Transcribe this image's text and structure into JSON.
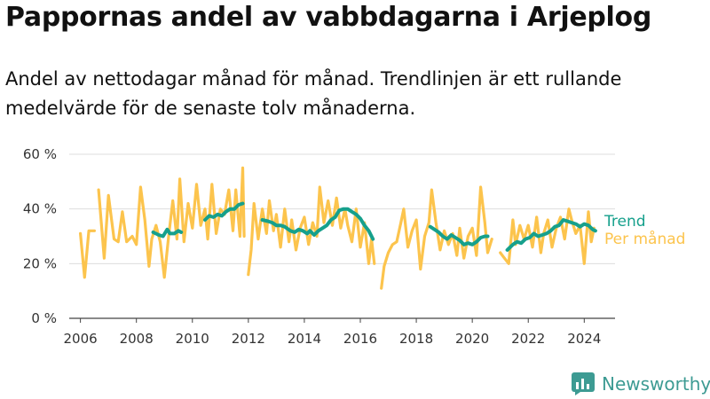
{
  "header": {
    "title": "Pappornas andel av vabbdagarna i Arjeplog",
    "subtitle": "Andel av nettodagar månad för månad. Trendlinjen är ett rullande medelvärde för de senaste tolv månaderna."
  },
  "brand": {
    "name": "Newsworthy",
    "icon": "newsworthy-logo-icon",
    "color": "#3d9b93"
  },
  "chart_data": {
    "type": "line",
    "x_unit": "year (fractional)",
    "y_unit": "percent",
    "ylim": [
      0,
      60
    ],
    "xlim": [
      2005.6,
      2025.1
    ],
    "yticks": [
      0,
      20,
      40,
      60
    ],
    "ytick_labels": [
      "0 %",
      "20 %",
      "40 %",
      "60 %"
    ],
    "xticks": [
      2006,
      2008,
      2010,
      2012,
      2014,
      2016,
      2018,
      2020,
      2022,
      2024
    ],
    "xtick_labels": [
      "2006",
      "2008",
      "2010",
      "2012",
      "2014",
      "2016",
      "2018",
      "2020",
      "2022",
      "2024"
    ],
    "grid": "horizontal",
    "legend_placement": "right, at end of lines",
    "series": [
      {
        "name": "Per månad",
        "color": "#fcc44d",
        "segments": [
          [
            [
              2006.0,
              31
            ],
            [
              2006.15,
              15
            ],
            [
              2006.3,
              32
            ],
            [
              2006.5,
              32
            ]
          ],
          [
            [
              2006.65,
              47
            ],
            [
              2006.85,
              22
            ],
            [
              2007.0,
              45
            ],
            [
              2007.2,
              29
            ],
            [
              2007.35,
              28
            ],
            [
              2007.5,
              39
            ],
            [
              2007.65,
              28
            ],
            [
              2007.85,
              30
            ],
            [
              2008.0,
              27
            ],
            [
              2008.15,
              48
            ],
            [
              2008.3,
              36
            ],
            [
              2008.45,
              19
            ],
            [
              2008.55,
              29
            ],
            [
              2008.7,
              34
            ],
            [
              2008.85,
              28
            ],
            [
              2009.0,
              15
            ],
            [
              2009.15,
              30
            ],
            [
              2009.3,
              43
            ],
            [
              2009.45,
              29
            ],
            [
              2009.55,
              51
            ],
            [
              2009.7,
              28
            ],
            [
              2009.85,
              42
            ],
            [
              2010.0,
              33
            ],
            [
              2010.15,
              49
            ],
            [
              2010.3,
              34
            ],
            [
              2010.45,
              40
            ],
            [
              2010.55,
              29
            ],
            [
              2010.7,
              49
            ],
            [
              2010.85,
              31
            ],
            [
              2011.0,
              40
            ],
            [
              2011.15,
              38
            ],
            [
              2011.3,
              47
            ],
            [
              2011.45,
              32
            ],
            [
              2011.55,
              47
            ],
            [
              2011.7,
              30
            ],
            [
              2011.8,
              55
            ],
            [
              2011.85,
              30
            ]
          ],
          [
            [
              2012.0,
              16
            ],
            [
              2012.1,
              25
            ],
            [
              2012.2,
              42
            ],
            [
              2012.35,
              29
            ],
            [
              2012.5,
              40
            ],
            [
              2012.65,
              31
            ],
            [
              2012.75,
              43
            ],
            [
              2012.9,
              32
            ],
            [
              2013.0,
              38
            ],
            [
              2013.15,
              26
            ],
            [
              2013.3,
              40
            ],
            [
              2013.45,
              28
            ],
            [
              2013.55,
              36
            ],
            [
              2013.7,
              25
            ],
            [
              2013.85,
              33
            ],
            [
              2014.0,
              37
            ],
            [
              2014.15,
              27
            ],
            [
              2014.3,
              35
            ],
            [
              2014.45,
              30
            ],
            [
              2014.55,
              48
            ],
            [
              2014.7,
              35
            ],
            [
              2014.85,
              43
            ],
            [
              2015.0,
              34
            ],
            [
              2015.15,
              44
            ],
            [
              2015.3,
              33
            ],
            [
              2015.45,
              40
            ],
            [
              2015.55,
              34
            ],
            [
              2015.7,
              28
            ],
            [
              2015.85,
              40
            ],
            [
              2016.0,
              26
            ],
            [
              2016.15,
              35
            ],
            [
              2016.3,
              20
            ],
            [
              2016.4,
              29
            ],
            [
              2016.5,
              20
            ]
          ],
          [
            [
              2016.75,
              11
            ],
            [
              2016.85,
              19
            ],
            [
              2017.0,
              24
            ],
            [
              2017.15,
              27
            ],
            [
              2017.3,
              28
            ],
            [
              2017.45,
              35
            ],
            [
              2017.55,
              40
            ],
            [
              2017.7,
              26
            ],
            [
              2017.85,
              32
            ],
            [
              2018.0,
              36
            ],
            [
              2018.15,
              18
            ],
            [
              2018.3,
              30
            ],
            [
              2018.45,
              35
            ],
            [
              2018.55,
              47
            ],
            [
              2018.7,
              35
            ],
            [
              2018.85,
              25
            ],
            [
              2019.0,
              32
            ],
            [
              2019.15,
              27
            ],
            [
              2019.3,
              31
            ],
            [
              2019.45,
              23
            ],
            [
              2019.55,
              33
            ],
            [
              2019.7,
              22
            ],
            [
              2019.85,
              30
            ],
            [
              2020.0,
              33
            ],
            [
              2020.15,
              23
            ],
            [
              2020.3,
              48
            ],
            [
              2020.45,
              35
            ],
            [
              2020.55,
              24
            ],
            [
              2020.7,
              29
            ]
          ],
          [
            [
              2021.0,
              24
            ],
            [
              2021.15,
              22
            ],
            [
              2021.3,
              20
            ],
            [
              2021.45,
              36
            ],
            [
              2021.55,
              27
            ],
            [
              2021.7,
              34
            ],
            [
              2021.85,
              29
            ],
            [
              2022.0,
              34
            ],
            [
              2022.15,
              26
            ],
            [
              2022.3,
              37
            ],
            [
              2022.45,
              24
            ],
            [
              2022.55,
              31
            ],
            [
              2022.7,
              36
            ],
            [
              2022.85,
              26
            ],
            [
              2023.0,
              33
            ],
            [
              2023.15,
              37
            ],
            [
              2023.3,
              29
            ],
            [
              2023.45,
              40
            ],
            [
              2023.55,
              36
            ],
            [
              2023.7,
              31
            ],
            [
              2023.85,
              34
            ],
            [
              2024.0,
              20
            ],
            [
              2024.15,
              39
            ],
            [
              2024.25,
              28
            ],
            [
              2024.35,
              33
            ]
          ]
        ]
      },
      {
        "name": "Trend",
        "color": "#16a08c",
        "segments": [
          [
            [
              2008.6,
              31.5
            ],
            [
              2008.8,
              30.5
            ],
            [
              2008.95,
              30
            ],
            [
              2009.1,
              32.5
            ],
            [
              2009.2,
              31
            ],
            [
              2009.35,
              31
            ],
            [
              2009.5,
              32
            ],
            [
              2009.6,
              31.5
            ]
          ],
          [
            [
              2010.45,
              36
            ],
            [
              2010.6,
              37.5
            ],
            [
              2010.75,
              37
            ],
            [
              2010.9,
              38
            ],
            [
              2011.05,
              37.5
            ],
            [
              2011.2,
              39
            ],
            [
              2011.35,
              40
            ],
            [
              2011.5,
              40
            ],
            [
              2011.65,
              41.5
            ],
            [
              2011.8,
              42
            ]
          ],
          [
            [
              2012.5,
              36
            ],
            [
              2012.7,
              35.5
            ],
            [
              2012.85,
              35
            ],
            [
              2013.0,
              34
            ],
            [
              2013.15,
              34
            ],
            [
              2013.3,
              33.5
            ],
            [
              2013.5,
              32
            ],
            [
              2013.65,
              31.5
            ],
            [
              2013.8,
              32.5
            ],
            [
              2013.95,
              32
            ],
            [
              2014.1,
              31
            ],
            [
              2014.2,
              32
            ],
            [
              2014.35,
              30.5
            ],
            [
              2014.5,
              32
            ],
            [
              2014.65,
              33
            ],
            [
              2014.8,
              34
            ],
            [
              2014.95,
              36
            ],
            [
              2015.1,
              37
            ],
            [
              2015.25,
              39.5
            ],
            [
              2015.4,
              40
            ],
            [
              2015.55,
              40
            ],
            [
              2015.7,
              39
            ],
            [
              2015.85,
              38
            ],
            [
              2016.0,
              36.5
            ],
            [
              2016.15,
              34
            ],
            [
              2016.3,
              32
            ],
            [
              2016.45,
              29
            ]
          ],
          [
            [
              2018.5,
              33.5
            ],
            [
              2018.65,
              32.5
            ],
            [
              2018.8,
              31.5
            ],
            [
              2018.95,
              30
            ],
            [
              2019.1,
              29
            ],
            [
              2019.25,
              30.5
            ],
            [
              2019.4,
              29.5
            ],
            [
              2019.55,
              28.5
            ],
            [
              2019.7,
              27
            ],
            [
              2019.85,
              27.5
            ],
            [
              2020.0,
              27
            ],
            [
              2020.15,
              28
            ],
            [
              2020.3,
              29.5
            ],
            [
              2020.45,
              30
            ],
            [
              2020.55,
              30
            ]
          ],
          [
            [
              2021.25,
              25
            ],
            [
              2021.45,
              27
            ],
            [
              2021.6,
              28
            ],
            [
              2021.75,
              27.5
            ],
            [
              2021.9,
              29
            ],
            [
              2022.05,
              29.5
            ],
            [
              2022.2,
              31
            ],
            [
              2022.35,
              30
            ],
            [
              2022.5,
              30.5
            ],
            [
              2022.65,
              31
            ],
            [
              2022.8,
              32
            ],
            [
              2022.95,
              33.5
            ],
            [
              2023.1,
              34
            ],
            [
              2023.25,
              36
            ],
            [
              2023.4,
              35.5
            ],
            [
              2023.55,
              35
            ],
            [
              2023.7,
              34.5
            ],
            [
              2023.85,
              33.5
            ],
            [
              2024.0,
              34.5
            ],
            [
              2024.15,
              34
            ],
            [
              2024.3,
              32.5
            ],
            [
              2024.4,
              32
            ]
          ]
        ]
      }
    ]
  }
}
